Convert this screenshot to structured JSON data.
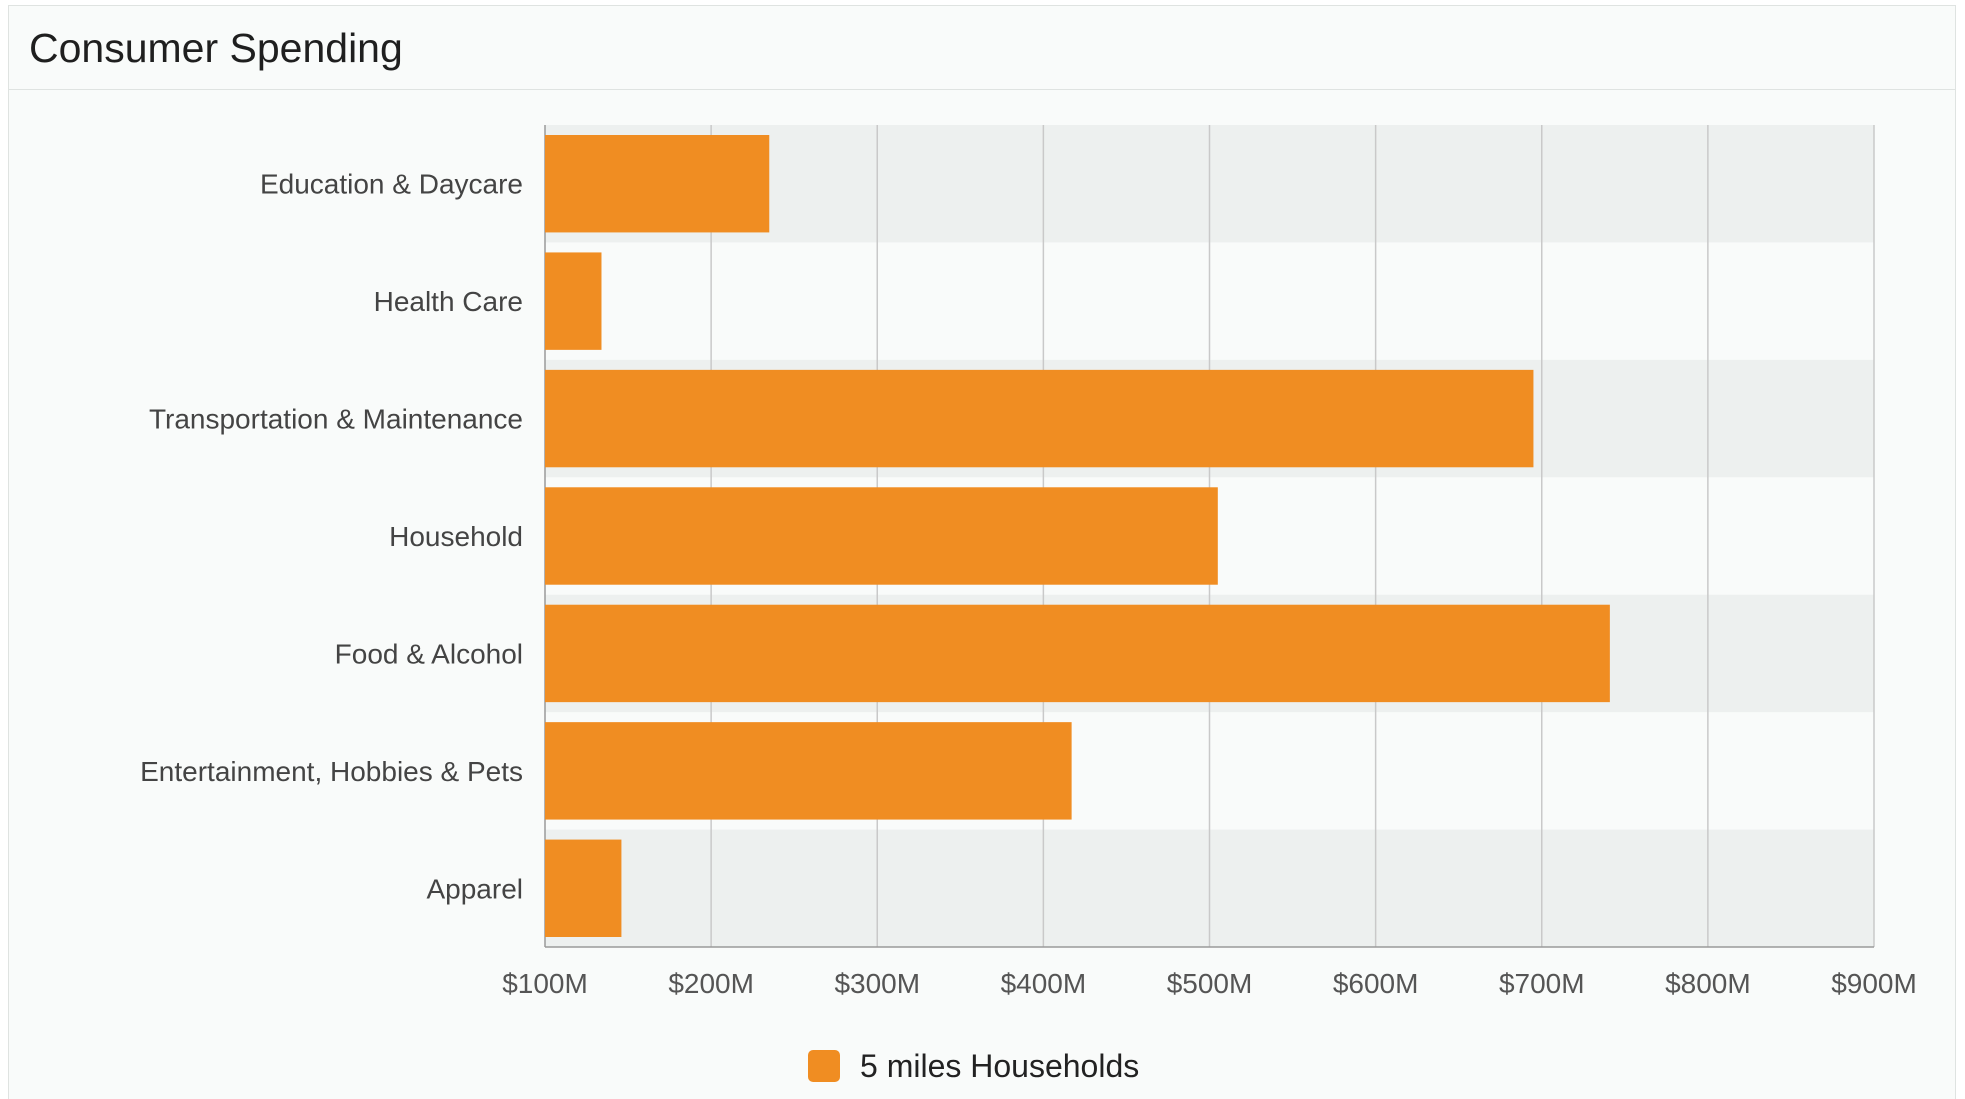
{
  "card": {
    "title": "Consumer Spending"
  },
  "colors": {
    "bar": "#f08d22",
    "band": "#edf0ef",
    "grid": "#c9c9c9",
    "axis": "#9a9a9a"
  },
  "chart_data": {
    "type": "bar",
    "orientation": "horizontal",
    "title": "",
    "xlabel": "",
    "ylabel": "",
    "categories": [
      "Education & Daycare",
      "Health Care",
      "Transportation & Maintenance",
      "Household",
      "Food & Alcohol",
      "Entertainment, Hobbies & Pets",
      "Apparel"
    ],
    "series": [
      {
        "name": "5 miles Households",
        "values": [
          235,
          134,
          695,
          505,
          741,
          417,
          146
        ]
      }
    ],
    "xlim": [
      100,
      900
    ],
    "x_ticks": [
      100,
      200,
      300,
      400,
      500,
      600,
      700,
      800,
      900
    ],
    "x_tick_labels": [
      "$100M",
      "$200M",
      "$300M",
      "$400M",
      "$500M",
      "$600M",
      "$700M",
      "$800M",
      "$900M"
    ],
    "grid": true,
    "legend_position": "bottom-center"
  }
}
